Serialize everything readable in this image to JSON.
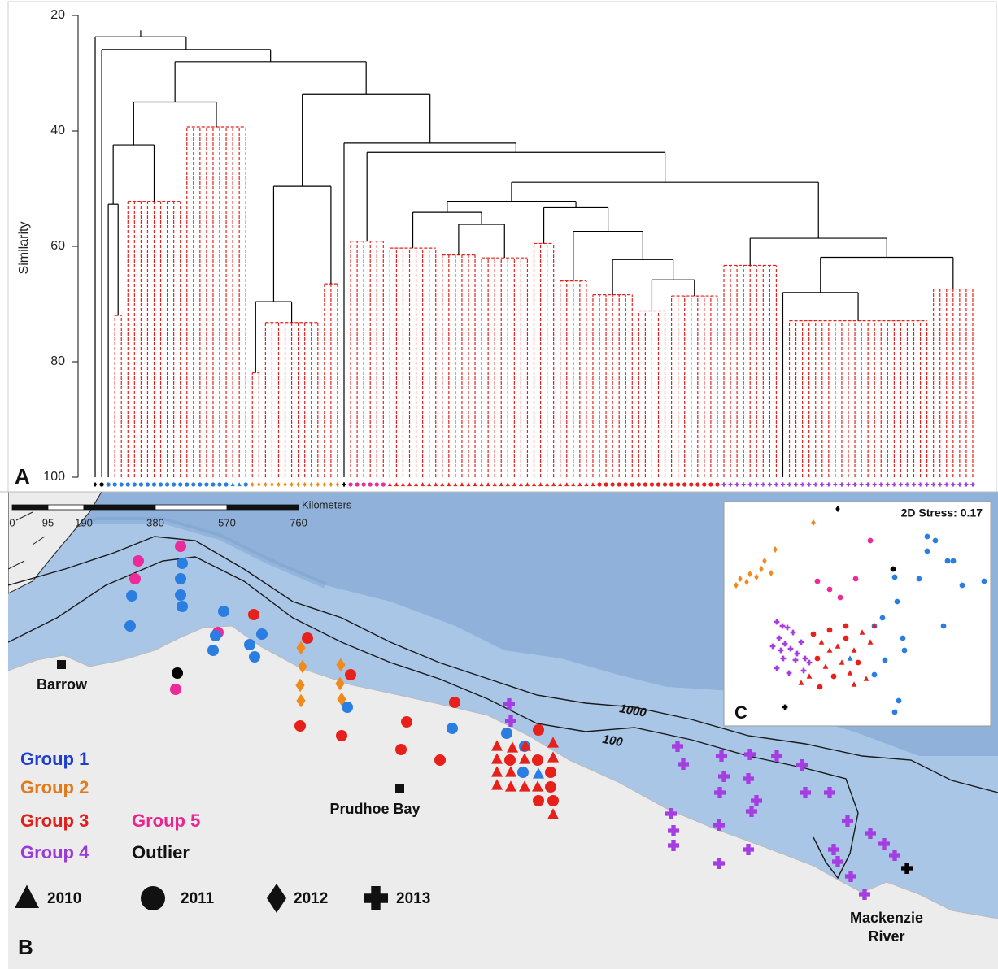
{
  "chart_data": {
    "type": "dendrogram",
    "panel_label": "A",
    "y_label": "Similarity",
    "ylim": [
      20,
      100
    ],
    "y_inverted": true,
    "yticks": [
      20,
      40,
      60,
      80,
      100
    ],
    "line_color": "#000000",
    "cluster_color": "#e8201c",
    "tree": {
      "height": 23.7,
      "children": [
        {
          "leaves": 1
        },
        {
          "height": 25.9,
          "children": [
            {
              "leaves": 1
            },
            {
              "height": 28.0,
              "children": [
                {
                  "height": 35.0,
                  "children": [
                    {
                      "height": 42.4,
                      "children": [
                        {
                          "height": 52.7,
                          "children": [
                            {
                              "leaves": 1
                            },
                            {
                              "leaves": 2,
                              "height": 72.0
                            }
                          ]
                        },
                        {
                          "leaves": 9,
                          "height": 52.2
                        }
                      ]
                    },
                    {
                      "leaves": 10,
                      "height": 39.3
                    }
                  ]
                },
                {
                  "height": 33.7,
                  "children": [
                    {
                      "height": 49.6,
                      "children": [
                        {
                          "height": 69.6,
                          "children": [
                            {
                              "leaves": 2,
                              "height": 81.9
                            },
                            {
                              "leaves": 9,
                              "height": 73.2
                            }
                          ]
                        },
                        {
                          "leaves": 3,
                          "height": 66.5
                        }
                      ]
                    },
                    {
                      "height": 42.1,
                      "children": [
                        {
                          "leaves": 1
                        },
                        {
                          "height": 43.7,
                          "children": [
                            {
                              "leaves": 6,
                              "height": 59.1
                            },
                            {
                              "height": 48.9,
                              "children": [
                                {
                                  "height": 52.2,
                                  "children": [
                                    {
                                      "height": 54.1,
                                      "children": [
                                        {
                                          "leaves": 8,
                                          "height": 60.3
                                        },
                                        {
                                          "height": 56.2,
                                          "children": [
                                            {
                                              "leaves": 6,
                                              "height": 61.5
                                            },
                                            {
                                              "leaves": 8,
                                              "height": 62.0
                                            }
                                          ]
                                        }
                                      ]
                                    },
                                    {
                                      "height": 53.3,
                                      "children": [
                                        {
                                          "leaves": 4,
                                          "height": 59.5
                                        },
                                        {
                                          "height": 57.4,
                                          "children": [
                                            {
                                              "leaves": 5,
                                              "height": 66.0
                                            },
                                            {
                                              "height": 62.3,
                                              "children": [
                                                {
                                                  "leaves": 7,
                                                  "height": 68.4
                                                },
                                                {
                                                  "height": 65.8,
                                                  "children": [
                                                    {
                                                      "leaves": 5,
                                                      "height": 71.2
                                                    },
                                                    {
                                                      "leaves": 8,
                                                      "height": 68.6
                                                    }
                                                  ]
                                                }
                                              ]
                                            }
                                          ]
                                        }
                                      ]
                                    }
                                  ]
                                },
                                {
                                  "height": 58.6,
                                  "children": [
                                    {
                                      "leaves": 9,
                                      "height": 63.3
                                    },
                                    {
                                      "height": 61.9,
                                      "children": [
                                        {
                                          "height": 68.0,
                                          "children": [
                                            {
                                              "leaves": 1
                                            },
                                            {
                                              "leaves": 22,
                                              "height": 72.9
                                            }
                                          ]
                                        },
                                        {
                                          "leaves": 7,
                                          "height": 67.4
                                        }
                                      ]
                                    }
                                  ]
                                }
                              ]
                            }
                          ]
                        }
                      ]
                    }
                  ]
                }
              ]
            }
          ]
        }
      ]
    },
    "leaf_markers": [
      {
        "group": "Outlier",
        "year": "2012",
        "count": 1
      },
      {
        "group": "Outlier",
        "year": "2011",
        "count": 1
      },
      {
        "group": "Group 1",
        "year": "2011",
        "count": 19
      },
      {
        "group": "Group 1",
        "year": "2010",
        "count": 2
      },
      {
        "group": "Group 1",
        "year": "2011",
        "count": 1
      },
      {
        "group": "Group 2",
        "year": "2012",
        "count": 14
      },
      {
        "group": "Outlier",
        "year": "2013",
        "count": 1
      },
      {
        "group": "Group 5",
        "year": "2011",
        "count": 6
      },
      {
        "group": "Group 3",
        "year": "2010",
        "count": 32
      },
      {
        "group": "Group 3",
        "year": "2011",
        "count": 19
      },
      {
        "group": "Group 4",
        "year": "2013",
        "count": 39
      }
    ]
  },
  "map": {
    "panel_label": "B",
    "scale_bar": {
      "ticks": [
        0,
        95,
        190,
        380,
        570,
        760
      ],
      "label": "Kilometers"
    },
    "places": [
      "Barrow",
      "Prudhoe Bay"
    ],
    "mackenzie_label": [
      "Mackenzie",
      "River"
    ],
    "contour_labels": [
      "1000",
      "100"
    ],
    "groups": [
      {
        "name": "Group 1",
        "color": "#2a7de1",
        "text_color": "#1f3fd0"
      },
      {
        "name": "Group 2",
        "color": "#f08a1c",
        "text_color": "#e07b1a"
      },
      {
        "name": "Group 3",
        "color": "#e8201c",
        "text_color": "#e0201c"
      },
      {
        "name": "Group 4",
        "color": "#a43ee0",
        "text_color": "#9b3ad6"
      },
      {
        "name": "Group 5",
        "color": "#ec2a9a",
        "text_color": "#e8258f"
      },
      {
        "name": "Outlier",
        "color": "#000000",
        "text_color": "#111111"
      }
    ],
    "years": [
      {
        "label": "2010",
        "shape": "triangle"
      },
      {
        "label": "2011",
        "shape": "circle"
      },
      {
        "label": "2012",
        "shape": "diamond"
      },
      {
        "label": "2013",
        "shape": "plus"
      }
    ]
  },
  "nmds": {
    "panel_label": "C",
    "stress_label": "2D Stress: 0.17"
  }
}
